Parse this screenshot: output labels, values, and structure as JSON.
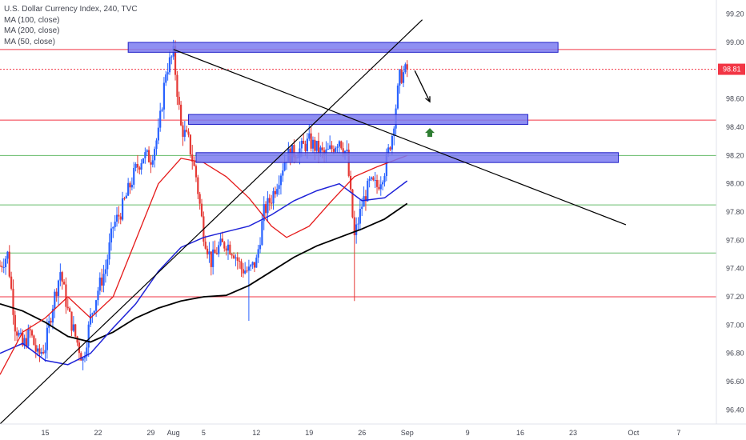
{
  "header": {
    "title": "U.S. Dollar Currency Index, 240, TVC",
    "studies": [
      "MA (100, close)",
      "MA (200, close)",
      "MA (50, close)"
    ]
  },
  "colors": {
    "up": "#2962ff",
    "down": "#e53935",
    "ma100": "#1e22d8",
    "ma200": "#000000",
    "ma50": "#e51919",
    "zone_fill": "#7b7bf0",
    "zone_stroke": "#2121c8",
    "res_line": "#f23645",
    "sup_line": "#66bb6a",
    "price_badge": "#f23645",
    "up_arrow": "#2e7d32"
  },
  "chart_data": {
    "type": "candlestick",
    "symbol": "DXY",
    "timeframe": "240",
    "source": "TVC",
    "ylim": [
      96.3,
      99.3
    ],
    "y_ticks": [
      96.4,
      96.6,
      96.8,
      97.0,
      97.2,
      97.4,
      97.6,
      97.8,
      98.0,
      98.2,
      98.4,
      98.6,
      98.8,
      99.0,
      99.2
    ],
    "x_range": [
      "2019-07-09",
      "2019-10-12"
    ],
    "x_ticks": [
      {
        "date": "2019-07-15",
        "label": "15"
      },
      {
        "date": "2019-07-22",
        "label": "22"
      },
      {
        "date": "2019-07-29",
        "label": "29"
      },
      {
        "date": "2019-08-01",
        "label": "Aug"
      },
      {
        "date": "2019-08-05",
        "label": "5"
      },
      {
        "date": "2019-08-12",
        "label": "12"
      },
      {
        "date": "2019-08-19",
        "label": "19"
      },
      {
        "date": "2019-08-26",
        "label": "26"
      },
      {
        "date": "2019-09-01",
        "label": "Sep"
      },
      {
        "date": "2019-09-09",
        "label": "9"
      },
      {
        "date": "2019-09-16",
        "label": "16"
      },
      {
        "date": "2019-09-23",
        "label": "23"
      },
      {
        "date": "2019-10-01",
        "label": "Oct"
      },
      {
        "date": "2019-10-07",
        "label": "7"
      }
    ],
    "last_price": "98.81",
    "last_price_value": 98.81,
    "price_path": [
      [
        "2019-07-09",
        97.42
      ],
      [
        "2019-07-10",
        97.5
      ],
      [
        "2019-07-11",
        97.0
      ],
      [
        "2019-07-12",
        96.85
      ],
      [
        "2019-07-13",
        96.95
      ],
      [
        "2019-07-14",
        96.78
      ],
      [
        "2019-07-15",
        96.85
      ],
      [
        "2019-07-16",
        97.15
      ],
      [
        "2019-07-17",
        97.38
      ],
      [
        "2019-07-18",
        97.1
      ],
      [
        "2019-07-19",
        96.92
      ],
      [
        "2019-07-20",
        96.75
      ],
      [
        "2019-07-21",
        97.05
      ],
      [
        "2019-07-22",
        97.25
      ],
      [
        "2019-07-23",
        97.4
      ],
      [
        "2019-07-24",
        97.7
      ],
      [
        "2019-07-25",
        97.8
      ],
      [
        "2019-07-26",
        97.95
      ],
      [
        "2019-07-27",
        98.1
      ],
      [
        "2019-07-28",
        98.2
      ],
      [
        "2019-07-29",
        98.18
      ],
      [
        "2019-07-30",
        98.35
      ],
      [
        "2019-07-31",
        98.8
      ],
      [
        "2019-08-01",
        98.92
      ],
      [
        "2019-08-02",
        98.4
      ],
      [
        "2019-08-03",
        98.3
      ],
      [
        "2019-08-04",
        98.05
      ],
      [
        "2019-08-05",
        97.65
      ],
      [
        "2019-08-06",
        97.45
      ],
      [
        "2019-08-07",
        97.55
      ],
      [
        "2019-08-08",
        97.58
      ],
      [
        "2019-08-09",
        97.52
      ],
      [
        "2019-08-10",
        97.4
      ],
      [
        "2019-08-11",
        97.38
      ],
      [
        "2019-08-12",
        97.45
      ],
      [
        "2019-08-13",
        97.8
      ],
      [
        "2019-08-14",
        97.9
      ],
      [
        "2019-08-15",
        98.05
      ],
      [
        "2019-08-16",
        98.2
      ],
      [
        "2019-08-17",
        98.22
      ],
      [
        "2019-08-18",
        98.25
      ],
      [
        "2019-08-19",
        98.3
      ],
      [
        "2019-08-20",
        98.25
      ],
      [
        "2019-08-21",
        98.2
      ],
      [
        "2019-08-22",
        98.25
      ],
      [
        "2019-08-23",
        98.32
      ],
      [
        "2019-08-24",
        98.2
      ],
      [
        "2019-08-25",
        97.62
      ],
      [
        "2019-08-26",
        97.85
      ],
      [
        "2019-08-27",
        98.0
      ],
      [
        "2019-08-28",
        97.98
      ],
      [
        "2019-08-29",
        98.1
      ],
      [
        "2019-08-30",
        98.35
      ],
      [
        "2019-08-31",
        98.75
      ],
      [
        "2019-09-01",
        98.81
      ]
    ],
    "spikes": [
      {
        "date": "2019-08-11",
        "low": 97.03
      },
      {
        "date": "2019-08-25",
        "low": 97.17
      },
      {
        "date": "2019-07-20",
        "low": 96.68
      }
    ],
    "ma50": [
      [
        "2019-07-09",
        96.65
      ],
      [
        "2019-07-12",
        96.95
      ],
      [
        "2019-07-15",
        97.05
      ],
      [
        "2019-07-18",
        97.2
      ],
      [
        "2019-07-21",
        97.05
      ],
      [
        "2019-07-24",
        97.2
      ],
      [
        "2019-07-27",
        97.6
      ],
      [
        "2019-07-30",
        98.0
      ],
      [
        "2019-08-02",
        98.18
      ],
      [
        "2019-08-05",
        98.15
      ],
      [
        "2019-08-08",
        98.05
      ],
      [
        "2019-08-11",
        97.9
      ],
      [
        "2019-08-14",
        97.7
      ],
      [
        "2019-08-16",
        97.62
      ],
      [
        "2019-08-19",
        97.7
      ],
      [
        "2019-08-22",
        97.88
      ],
      [
        "2019-08-25",
        98.05
      ],
      [
        "2019-08-28",
        98.12
      ],
      [
        "2019-08-31",
        98.18
      ],
      [
        "2019-09-01",
        98.2
      ]
    ],
    "ma100": [
      [
        "2019-07-09",
        96.8
      ],
      [
        "2019-07-12",
        96.87
      ],
      [
        "2019-07-15",
        96.75
      ],
      [
        "2019-07-18",
        96.72
      ],
      [
        "2019-07-21",
        96.8
      ],
      [
        "2019-07-24",
        96.98
      ],
      [
        "2019-07-27",
        97.15
      ],
      [
        "2019-07-30",
        97.38
      ],
      [
        "2019-08-02",
        97.55
      ],
      [
        "2019-08-05",
        97.62
      ],
      [
        "2019-08-08",
        97.66
      ],
      [
        "2019-08-11",
        97.7
      ],
      [
        "2019-08-14",
        97.78
      ],
      [
        "2019-08-17",
        97.88
      ],
      [
        "2019-08-20",
        97.95
      ],
      [
        "2019-08-23",
        98.0
      ],
      [
        "2019-08-26",
        97.88
      ],
      [
        "2019-08-29",
        97.9
      ],
      [
        "2019-09-01",
        98.02
      ]
    ],
    "ma200": [
      [
        "2019-07-09",
        97.15
      ],
      [
        "2019-07-12",
        97.1
      ],
      [
        "2019-07-15",
        97.02
      ],
      [
        "2019-07-18",
        96.92
      ],
      [
        "2019-07-21",
        96.88
      ],
      [
        "2019-07-24",
        96.95
      ],
      [
        "2019-07-27",
        97.05
      ],
      [
        "2019-07-30",
        97.12
      ],
      [
        "2019-08-02",
        97.17
      ],
      [
        "2019-08-05",
        97.2
      ],
      [
        "2019-08-08",
        97.21
      ],
      [
        "2019-08-11",
        97.28
      ],
      [
        "2019-08-14",
        97.38
      ],
      [
        "2019-08-17",
        97.48
      ],
      [
        "2019-08-20",
        97.56
      ],
      [
        "2019-08-23",
        97.62
      ],
      [
        "2019-08-26",
        97.68
      ],
      [
        "2019-08-29",
        97.75
      ],
      [
        "2019-09-01",
        97.86
      ]
    ],
    "horizontal_lines": [
      {
        "value": 98.95,
        "kind": "resistance",
        "style": "solid"
      },
      {
        "value": 98.81,
        "kind": "resistance",
        "style": "dotted"
      },
      {
        "value": 98.45,
        "kind": "resistance",
        "style": "solid"
      },
      {
        "value": 98.2,
        "kind": "support",
        "style": "solid"
      },
      {
        "value": 97.85,
        "kind": "support",
        "style": "solid"
      },
      {
        "value": 97.51,
        "kind": "support",
        "style": "solid"
      },
      {
        "value": 97.2,
        "kind": "resistance",
        "style": "solid"
      }
    ],
    "zones": [
      {
        "from": "2019-07-26",
        "to": "2019-09-21",
        "top": 99.0,
        "bottom": 98.93
      },
      {
        "from": "2019-08-03",
        "to": "2019-09-17",
        "top": 98.49,
        "bottom": 98.42
      },
      {
        "from": "2019-08-04",
        "to": "2019-09-29",
        "top": 98.22,
        "bottom": 98.15
      }
    ],
    "trendlines": [
      {
        "from": [
          "2019-07-09",
          96.3
        ],
        "to": [
          "2019-09-03",
          99.16
        ]
      },
      {
        "from": [
          "2019-08-01",
          98.95
        ],
        "to": [
          "2019-09-30",
          97.71
        ]
      }
    ],
    "arrows": [
      {
        "kind": "down",
        "from": [
          "2019-09-02",
          98.8
        ],
        "to": [
          "2019-09-04",
          98.58
        ]
      },
      {
        "kind": "up",
        "at": [
          "2019-09-04",
          98.36
        ]
      }
    ]
  }
}
